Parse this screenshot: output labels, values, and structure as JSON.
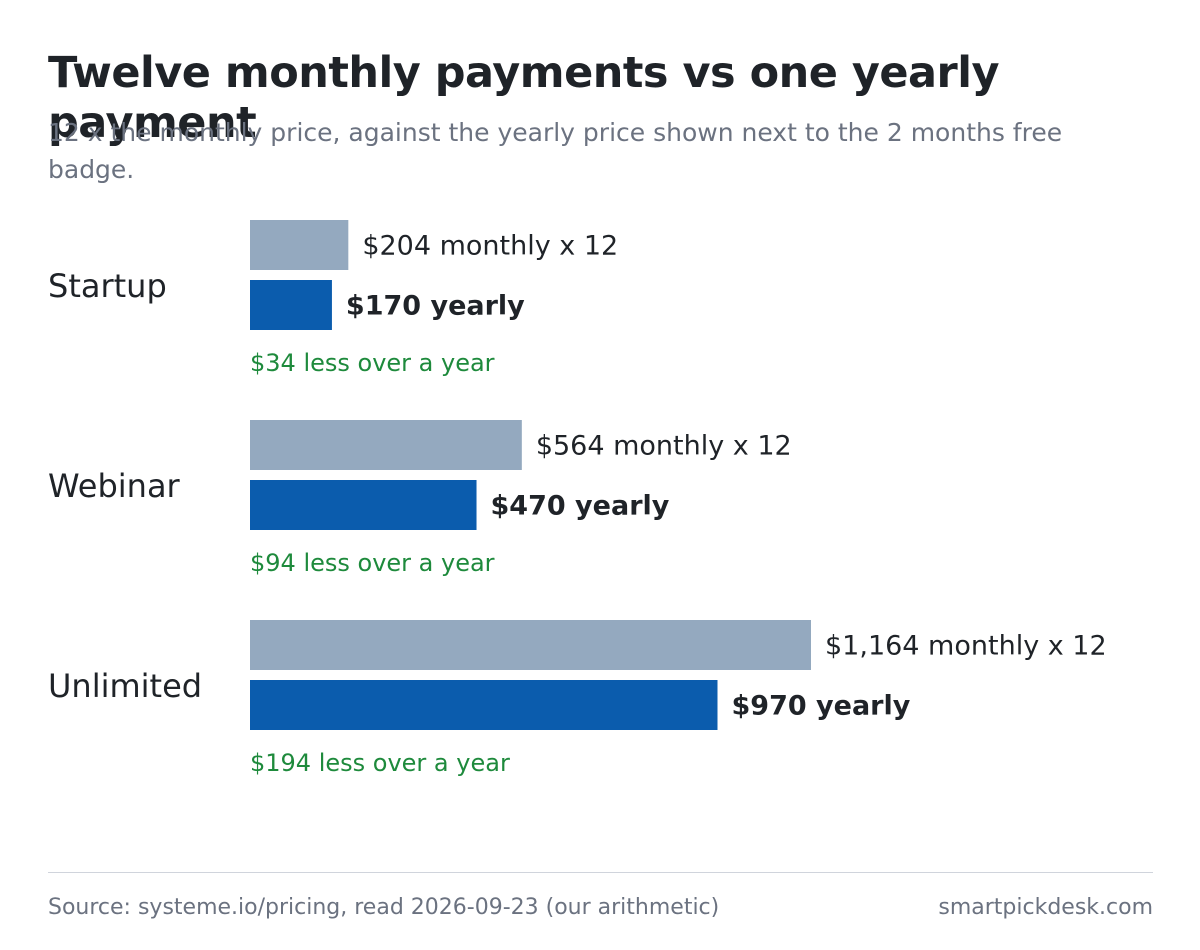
{
  "chart_data": {
    "type": "bar",
    "orientation": "horizontal",
    "title": "Twelve monthly payments vs one yearly payment",
    "subtitle": "12 x the monthly price, against the yearly price shown next to the 2 months free badge.",
    "categories": [
      "Startup",
      "Webinar",
      "Unlimited"
    ],
    "series": [
      {
        "color": "#94a9bf",
        "values": [
          204,
          564,
          1164
        ],
        "value_labels": [
          "$204 monthly x 12",
          "$564 monthly x 12",
          "$1,164 monthly x 12"
        ],
        "label_weight": "normal"
      },
      {
        "color": "#0b5cad",
        "values": [
          170,
          470,
          970
        ],
        "value_labels": [
          "$170 yearly",
          "$470 yearly",
          "$970 yearly"
        ],
        "label_weight": "bold"
      }
    ],
    "annotations": [
      "$34 less over a year",
      "$94 less over a year",
      "$194 less over a year"
    ],
    "annotation_color": "#1e8a3c",
    "source": "Source: systeme.io/pricing, read 2026-09-23 (our arithmetic)",
    "credit": "smartpickdesk.com"
  }
}
